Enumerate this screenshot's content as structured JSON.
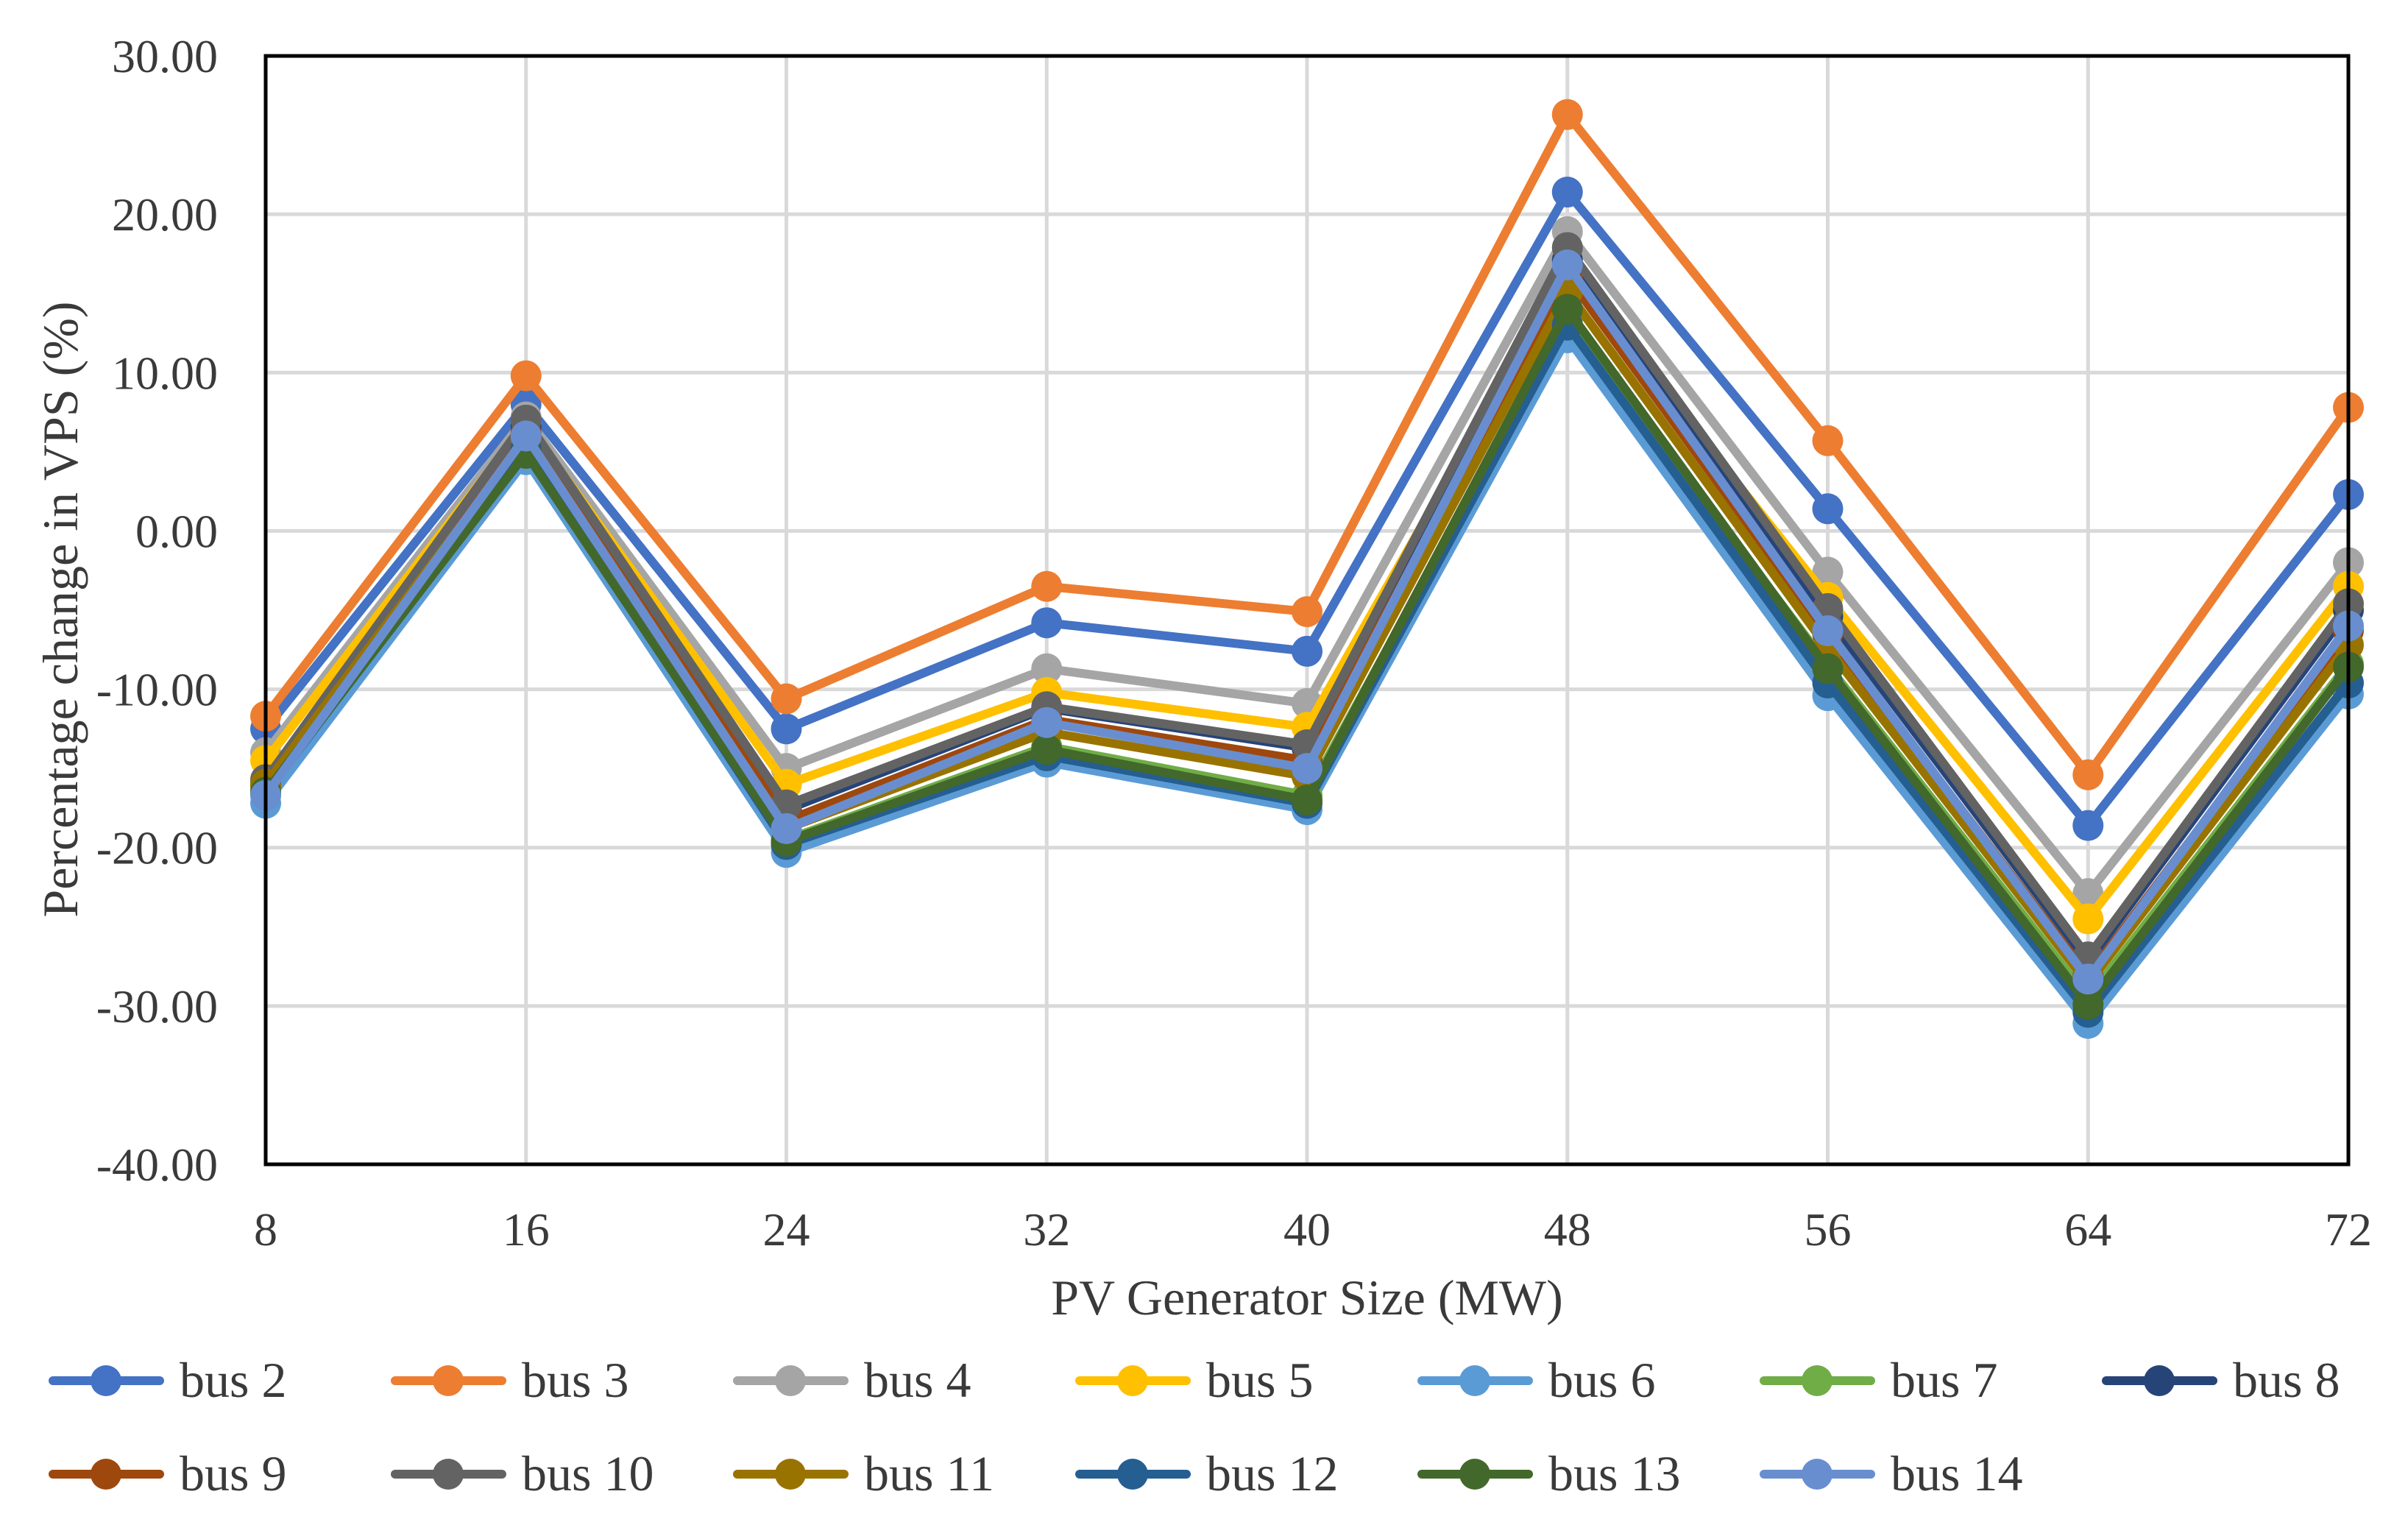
{
  "chart_data": {
    "type": "line",
    "title": "",
    "xlabel": "PV Generator Size (MW)",
    "ylabel": "Percentage change in VPS (%)",
    "categories": [
      "8",
      "16",
      "24",
      "32",
      "40",
      "48",
      "56",
      "64",
      "72"
    ],
    "ylim": [
      -40,
      30
    ],
    "yticks": [
      -40,
      -30,
      -20,
      -10,
      0,
      10,
      20,
      30
    ],
    "ytick_labels": [
      "-40.00",
      "-30.00",
      "-20.00",
      "-10.00",
      "0.00",
      "10.00",
      "20.00",
      "30.00"
    ],
    "grid": true,
    "legend_position": "bottom",
    "series": [
      {
        "name": "bus 2",
        "color": "#4472C4",
        "values": [
          -12.5,
          8.0,
          -12.5,
          -5.8,
          -7.6,
          21.4,
          1.4,
          -18.6,
          2.3
        ]
      },
      {
        "name": "bus 3",
        "color": "#ED7D31",
        "values": [
          -11.7,
          9.8,
          -10.6,
          -3.5,
          -5.1,
          26.3,
          5.7,
          -15.4,
          7.8
        ]
      },
      {
        "name": "bus 4",
        "color": "#A5A5A5",
        "values": [
          -14.0,
          7.2,
          -15.0,
          -8.7,
          -10.9,
          18.9,
          -2.6,
          -22.9,
          -2.0
        ]
      },
      {
        "name": "bus 5",
        "color": "#FFC000",
        "values": [
          -14.5,
          6.8,
          -16.0,
          -10.2,
          -12.4,
          16.5,
          -4.2,
          -24.5,
          -3.5
        ]
      },
      {
        "name": "bus 6",
        "color": "#5B9BD5",
        "values": [
          -17.2,
          4.5,
          -20.3,
          -14.6,
          -17.6,
          12.2,
          -10.4,
          -31.1,
          -10.3
        ]
      },
      {
        "name": "bus 7",
        "color": "#70AD47",
        "values": [
          -16.3,
          5.0,
          -19.5,
          -13.6,
          -16.7,
          13.3,
          -8.5,
          -29.5,
          -8.4
        ]
      },
      {
        "name": "bus 8",
        "color": "#264478",
        "values": [
          -15.9,
          6.6,
          -17.6,
          -11.2,
          -13.7,
          17.1,
          -5.4,
          -27.2,
          -5.0
        ]
      },
      {
        "name": "bus 9",
        "color": "#9E480E",
        "values": [
          -16.1,
          6.2,
          -18.3,
          -11.9,
          -14.5,
          16.1,
          -6.5,
          -28.1,
          -6.3
        ]
      },
      {
        "name": "bus 10",
        "color": "#636363",
        "values": [
          -15.7,
          7.0,
          -17.3,
          -11.1,
          -13.5,
          17.9,
          -4.9,
          -26.9,
          -4.6
        ]
      },
      {
        "name": "bus 11",
        "color": "#997300",
        "values": [
          -16.0,
          5.8,
          -18.8,
          -12.7,
          -15.5,
          15.1,
          -7.4,
          -28.6,
          -7.2
        ]
      },
      {
        "name": "bus 12",
        "color": "#255E91",
        "values": [
          -16.6,
          5.2,
          -19.8,
          -14.2,
          -17.2,
          13.0,
          -9.6,
          -30.4,
          -9.6
        ]
      },
      {
        "name": "bus 13",
        "color": "#43682B",
        "values": [
          -16.5,
          4.9,
          -19.6,
          -13.8,
          -17.0,
          14.0,
          -8.7,
          -29.9,
          -8.6
        ]
      },
      {
        "name": "bus 14",
        "color": "#698ED0",
        "values": [
          -16.7,
          6.0,
          -18.8,
          -12.1,
          -15.0,
          16.8,
          -6.3,
          -28.3,
          -6.0
        ]
      }
    ]
  }
}
